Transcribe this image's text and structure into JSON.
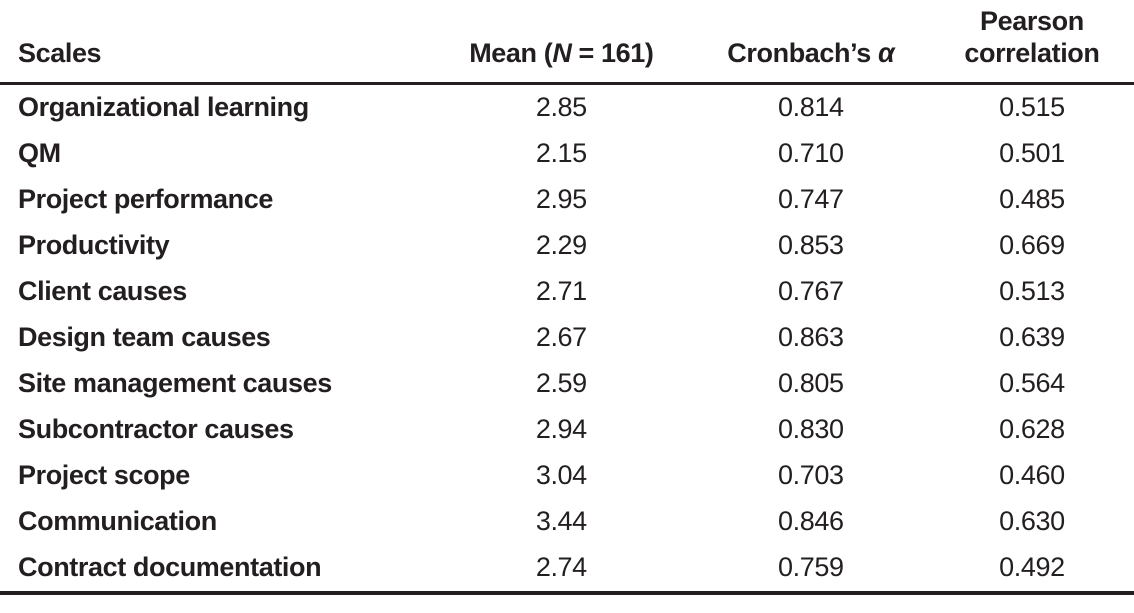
{
  "page": {
    "background_color": "#ffffff",
    "text_color": "#231f20",
    "rule_color": "#231f20"
  },
  "table": {
    "header": {
      "scales": "Scales",
      "mean_prefix": "Mean (",
      "mean_n": "N",
      "mean_rest": " = 161)",
      "cronbach_prefix": "Cronbach’s ",
      "cronbach_alpha": "α",
      "pearson_line1": "Pearson",
      "pearson_line2": "correlation"
    },
    "rows": [
      {
        "scale": "Organizational learning",
        "mean": "2.85",
        "alpha": "0.814",
        "pearson": "0.515"
      },
      {
        "scale": "QM",
        "mean": "2.15",
        "alpha": "0.710",
        "pearson": "0.501"
      },
      {
        "scale": "Project performance",
        "mean": "2.95",
        "alpha": "0.747",
        "pearson": "0.485"
      },
      {
        "scale": "Productivity",
        "mean": "2.29",
        "alpha": "0.853",
        "pearson": "0.669"
      },
      {
        "scale": "Client causes",
        "mean": "2.71",
        "alpha": "0.767",
        "pearson": "0.513"
      },
      {
        "scale": "Design team causes",
        "mean": "2.67",
        "alpha": "0.863",
        "pearson": "0.639"
      },
      {
        "scale": "Site management causes",
        "mean": "2.59",
        "alpha": "0.805",
        "pearson": "0.564"
      },
      {
        "scale": "Subcontractor causes",
        "mean": "2.94",
        "alpha": "0.830",
        "pearson": "0.628"
      },
      {
        "scale": "Project scope",
        "mean": "3.04",
        "alpha": "0.703",
        "pearson": "0.460"
      },
      {
        "scale": "Communication",
        "mean": "3.44",
        "alpha": "0.846",
        "pearson": "0.630"
      },
      {
        "scale": "Contract documentation",
        "mean": "2.74",
        "alpha": "0.759",
        "pearson": "0.492"
      }
    ]
  }
}
